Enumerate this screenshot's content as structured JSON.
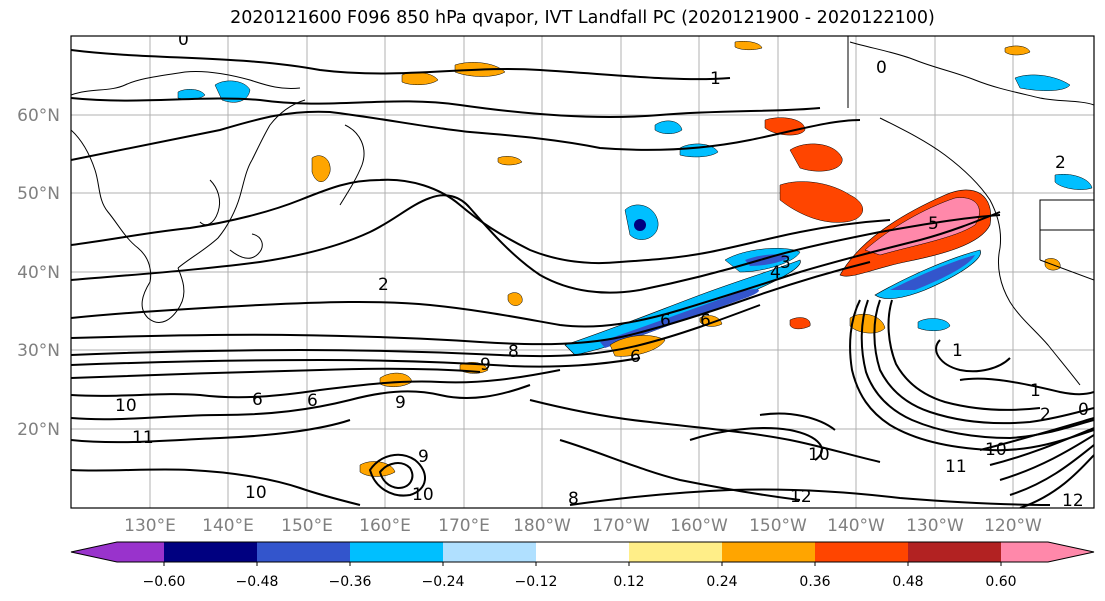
{
  "title": "2020121600 F096 850 hPa qvapor, IVT Landfall PC (2020121900 - 2020122100)",
  "axes": {
    "lat_labels": [
      "60°N",
      "50°N",
      "40°N",
      "30°N",
      "20°N"
    ],
    "lon_labels": [
      "130°E",
      "140°E",
      "150°E",
      "160°E",
      "170°E",
      "180°W",
      "170°W",
      "160°W",
      "150°W",
      "140°W",
      "130°W",
      "120°W"
    ]
  },
  "colorbar": {
    "colors": [
      "#9933cc",
      "#000080",
      "#3355cc",
      "#00bfff",
      "#b0e0ff",
      "#ffffff",
      "#ffee88",
      "#ffa500",
      "#ff4500",
      "#b22222",
      "#ff88aa"
    ],
    "tick_labels": [
      "−0.60",
      "−0.48",
      "−0.36",
      "−0.24",
      "−0.12",
      "0.12",
      "0.24",
      "0.36",
      "0.48",
      "0.60"
    ],
    "extend": "both"
  },
  "contour_labels": [
    "0",
    "0",
    "1",
    "2",
    "2",
    "5",
    "3",
    "4",
    "6",
    "6",
    "8",
    "9",
    "6",
    "1",
    "1",
    "2",
    "10",
    "11",
    "6",
    "9",
    "10",
    "10",
    "6",
    "9",
    "8",
    "12",
    "12",
    "10",
    "11",
    "10",
    "0"
  ],
  "colors": {
    "grid": "#b0b0b0",
    "contour": "#000000",
    "label": "#808080"
  }
}
